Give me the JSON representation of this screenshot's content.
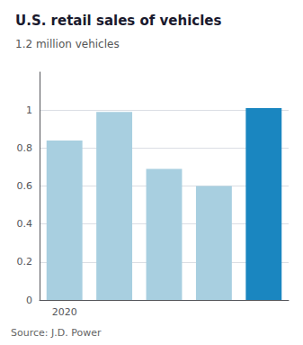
{
  "chart_data": {
    "type": "bar",
    "title": "U.S. retail sales of vehicles",
    "subtitle": "1.2 million vehicles",
    "annotations": [
      "Source: J.D. Power"
    ],
    "categories": [
      "2020",
      null,
      null,
      null,
      null
    ],
    "values": [
      0.84,
      0.99,
      0.69,
      0.6,
      1.01
    ],
    "colors": [
      "#a8cfe0",
      "#a8cfe0",
      "#a8cfe0",
      "#a8cfe0",
      "#1a86c0"
    ],
    "ylim": [
      0,
      1.2
    ],
    "yticks": [
      0,
      0.2,
      0.4,
      0.6,
      0.8,
      1
    ],
    "grid": true
  }
}
